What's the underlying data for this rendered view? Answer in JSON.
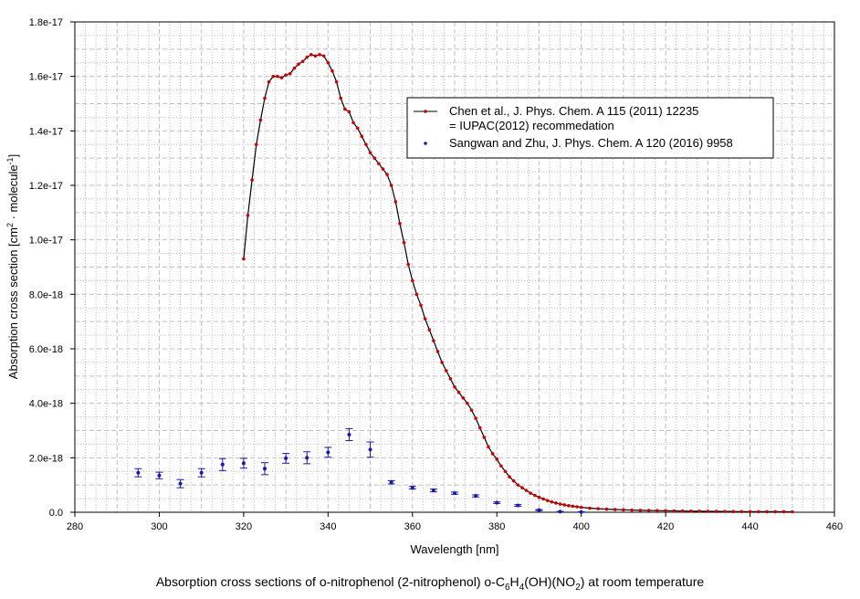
{
  "caption": {
    "prefix": "Absorption cross sections of o-nitrophenol (2-nitrophenol) o-C",
    "s1": "6",
    "m1": "H",
    "s2": "4",
    "m2": "(OH)(NO",
    "s3": "2",
    "suffix": ") at room temperature"
  },
  "chart_data": {
    "type": "line",
    "xlabel": "Wavelength [nm]",
    "ylabel": {
      "text1": "Absorption cross section [cm",
      "sup1": "2",
      "text2": " · molecule",
      "sup2": "-1",
      "text3": "]"
    },
    "xlim": [
      280,
      460
    ],
    "ylim": [
      0,
      1.8e-17
    ],
    "xticks": [
      280,
      300,
      320,
      340,
      360,
      380,
      400,
      420,
      440,
      460
    ],
    "xticklabels": [
      "280",
      "300",
      "320",
      "340",
      "360",
      "380",
      "400",
      "420",
      "440",
      "460"
    ],
    "yticks": [
      0,
      2e-18,
      4e-18,
      6e-18,
      8e-18,
      1e-17,
      1.2e-17,
      1.4e-17,
      1.6e-17,
      1.8e-17
    ],
    "yticklabels": [
      "0.0",
      "2.0e-18",
      "4.0e-18",
      "6.0e-18",
      "8.0e-18",
      "1.0e-17",
      "1.2e-17",
      "1.4e-17",
      "1.6e-17",
      "1.8e-17"
    ],
    "grid": true,
    "legend_position": "top-right",
    "colors": {
      "line": "#000000",
      "marker": "#cc0000",
      "scatter": "#1a1aaa",
      "grid": "#c0c0c0"
    },
    "series": [
      {
        "name": "Chen et al., J. Phys. Chem. A 115 (2011) 12235",
        "name2": "= IUPAC(2012) recommedation",
        "style": "line-with-markers",
        "x": [
          320,
          321,
          322,
          323,
          324,
          325,
          326,
          327,
          328,
          329,
          330,
          331,
          332,
          333,
          334,
          335,
          336,
          337,
          338,
          339,
          340,
          341,
          342,
          343,
          344,
          345,
          346,
          347,
          348,
          349,
          350,
          351,
          352,
          353,
          354,
          355,
          356,
          357,
          358,
          359,
          360,
          361,
          362,
          363,
          364,
          365,
          366,
          367,
          368,
          369,
          370,
          371,
          372,
          373,
          374,
          375,
          376,
          377,
          378,
          379,
          380,
          381,
          382,
          383,
          384,
          385,
          386,
          387,
          388,
          389,
          390,
          391,
          392,
          393,
          394,
          395,
          396,
          397,
          398,
          399,
          400,
          402,
          404,
          406,
          408,
          410,
          412,
          414,
          416,
          418,
          420,
          422,
          424,
          426,
          428,
          430,
          432,
          434,
          436,
          438,
          440,
          442,
          444,
          446,
          448,
          450
        ],
        "y": [
          9.3e-18,
          1.09e-17,
          1.22e-17,
          1.35e-17,
          1.44e-17,
          1.52e-17,
          1.58e-17,
          1.6e-17,
          1.6e-17,
          1.595e-17,
          1.605e-17,
          1.61e-17,
          1.63e-17,
          1.645e-17,
          1.655e-17,
          1.67e-17,
          1.68e-17,
          1.675e-17,
          1.68e-17,
          1.675e-17,
          1.65e-17,
          1.62e-17,
          1.58e-17,
          1.52e-17,
          1.48e-17,
          1.47e-17,
          1.43e-17,
          1.41e-17,
          1.38e-17,
          1.35e-17,
          1.32e-17,
          1.3e-17,
          1.28e-17,
          1.26e-17,
          1.24e-17,
          1.2e-17,
          1.14e-17,
          1.06e-17,
          9.9e-18,
          9.1e-18,
          8.5e-18,
          8e-18,
          7.6e-18,
          7.1e-18,
          6.7e-18,
          6.3e-18,
          5.9e-18,
          5.5e-18,
          5.2e-18,
          4.9e-18,
          4.6e-18,
          4.4e-18,
          4.2e-18,
          4e-18,
          3.75e-18,
          3.45e-18,
          3.1e-18,
          2.75e-18,
          2.4e-18,
          2.15e-18,
          1.95e-18,
          1.7e-18,
          1.5e-18,
          1.3e-18,
          1.15e-18,
          1e-18,
          9e-19,
          8e-19,
          7e-19,
          6.2e-19,
          5.5e-19,
          4.9e-19,
          4.3e-19,
          3.8e-19,
          3.4e-19,
          3e-19,
          2.7e-19,
          2.4e-19,
          2.2e-19,
          2e-19,
          1.8e-19,
          1.5e-19,
          1.3e-19,
          1.15e-19,
          1e-19,
          9e-20,
          8e-20,
          7e-20,
          6.5e-20,
          6e-20,
          5.5e-20,
          5e-20,
          4.5e-20,
          4e-20,
          3.7e-20,
          3.4e-20,
          3.1e-20,
          2.9e-20,
          2.7e-20,
          2.5e-20,
          2.3e-20,
          2.1e-20,
          2e-20,
          1.9e-20,
          1.8e-20,
          1.7e-20
        ]
      },
      {
        "name": "Sangwan and Zhu, J. Phys. Chem. A 120 (2016) 9958",
        "style": "scatter-with-errorbars",
        "x": [
          295,
          300,
          305,
          310,
          315,
          320,
          325,
          330,
          335,
          340,
          345,
          350,
          355,
          360,
          365,
          370,
          375,
          380,
          385,
          390,
          395,
          400
        ],
        "y": [
          1.45e-18,
          1.35e-18,
          1.05e-18,
          1.45e-18,
          1.75e-18,
          1.8e-18,
          1.6e-18,
          1.98e-18,
          2e-18,
          2.2e-18,
          2.85e-18,
          2.3e-18,
          1.1e-18,
          9e-19,
          8e-19,
          7e-19,
          6e-19,
          3.5e-19,
          2.5e-19,
          8e-20,
          2e-20,
          1e-20
        ],
        "err": [
          1.5e-19,
          1.2e-19,
          1.5e-19,
          1.5e-19,
          2.2e-19,
          1.8e-19,
          2.2e-19,
          1.8e-19,
          2.2e-19,
          1.8e-19,
          2.2e-19,
          2.8e-19,
          6e-20,
          5e-20,
          5e-20,
          4e-20,
          4e-20,
          3e-20,
          3e-20,
          2e-20,
          1e-20,
          1e-20
        ]
      }
    ]
  }
}
